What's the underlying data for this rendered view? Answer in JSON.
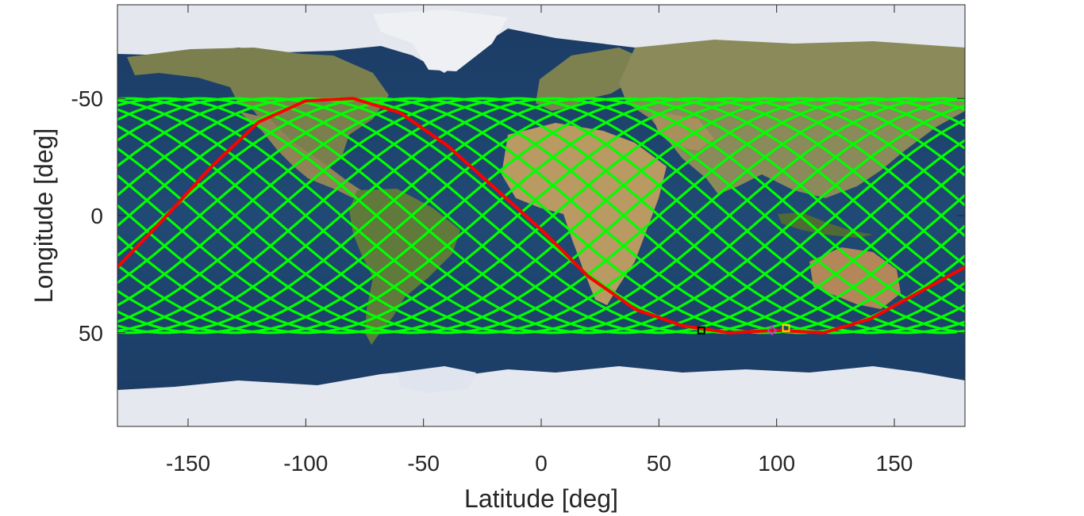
{
  "chart_data": {
    "type": "line",
    "xlabel": "Latitude [deg]",
    "ylabel": "Longitude [deg]",
    "xlim": [
      -180,
      180
    ],
    "ylim": [
      -90,
      90
    ],
    "y_reversed": true,
    "x_ticks": [
      -150,
      -100,
      -50,
      0,
      50,
      100,
      150
    ],
    "x_tick_labels": [
      "-150",
      "-100",
      "-50",
      "0",
      "50",
      "100",
      "150"
    ],
    "y_ticks": [
      -50,
      0,
      50
    ],
    "y_tick_labels": [
      "-50",
      "0",
      "50"
    ],
    "background": "world map",
    "grid": false,
    "colors": {
      "ground_tracks": "#00ff00",
      "current_track": "#ff0000",
      "ocean": "#1f4068",
      "land": "#8a8a5a",
      "ice": "#e6e8ef"
    },
    "series": [
      {
        "kind": "ground_track_family",
        "color": "#00ff00",
        "amplitude": 50,
        "period": 360,
        "phases": [
          -175,
          -160,
          -145,
          -130,
          -115,
          -100,
          -85,
          -70,
          -55,
          -40,
          -25,
          -10,
          5,
          20,
          35,
          50,
          65,
          80,
          95,
          110,
          125,
          140,
          155,
          170
        ]
      },
      {
        "kind": "current_track",
        "color": "#ff0000",
        "amplitude": 50,
        "period": 360,
        "x": [
          -180,
          -160,
          -140,
          -120,
          -100,
          -80,
          -60,
          -40,
          -20,
          0,
          20,
          40,
          60,
          80,
          100,
          120,
          140,
          160,
          180
        ],
        "y": [
          22,
          1,
          -21,
          -40,
          -49,
          -50,
          -44,
          -30,
          -12,
          6,
          26,
          40,
          47,
          50,
          49,
          50,
          44,
          33,
          22
        ]
      }
    ],
    "markers": [
      {
        "x": 68,
        "y": 49,
        "color": "#000000",
        "shape": "square"
      },
      {
        "x": 98,
        "y": 49,
        "color": "#cc33cc",
        "shape": "diamond"
      },
      {
        "x": 104,
        "y": 48,
        "color": "#ffd400",
        "shape": "square"
      }
    ]
  }
}
